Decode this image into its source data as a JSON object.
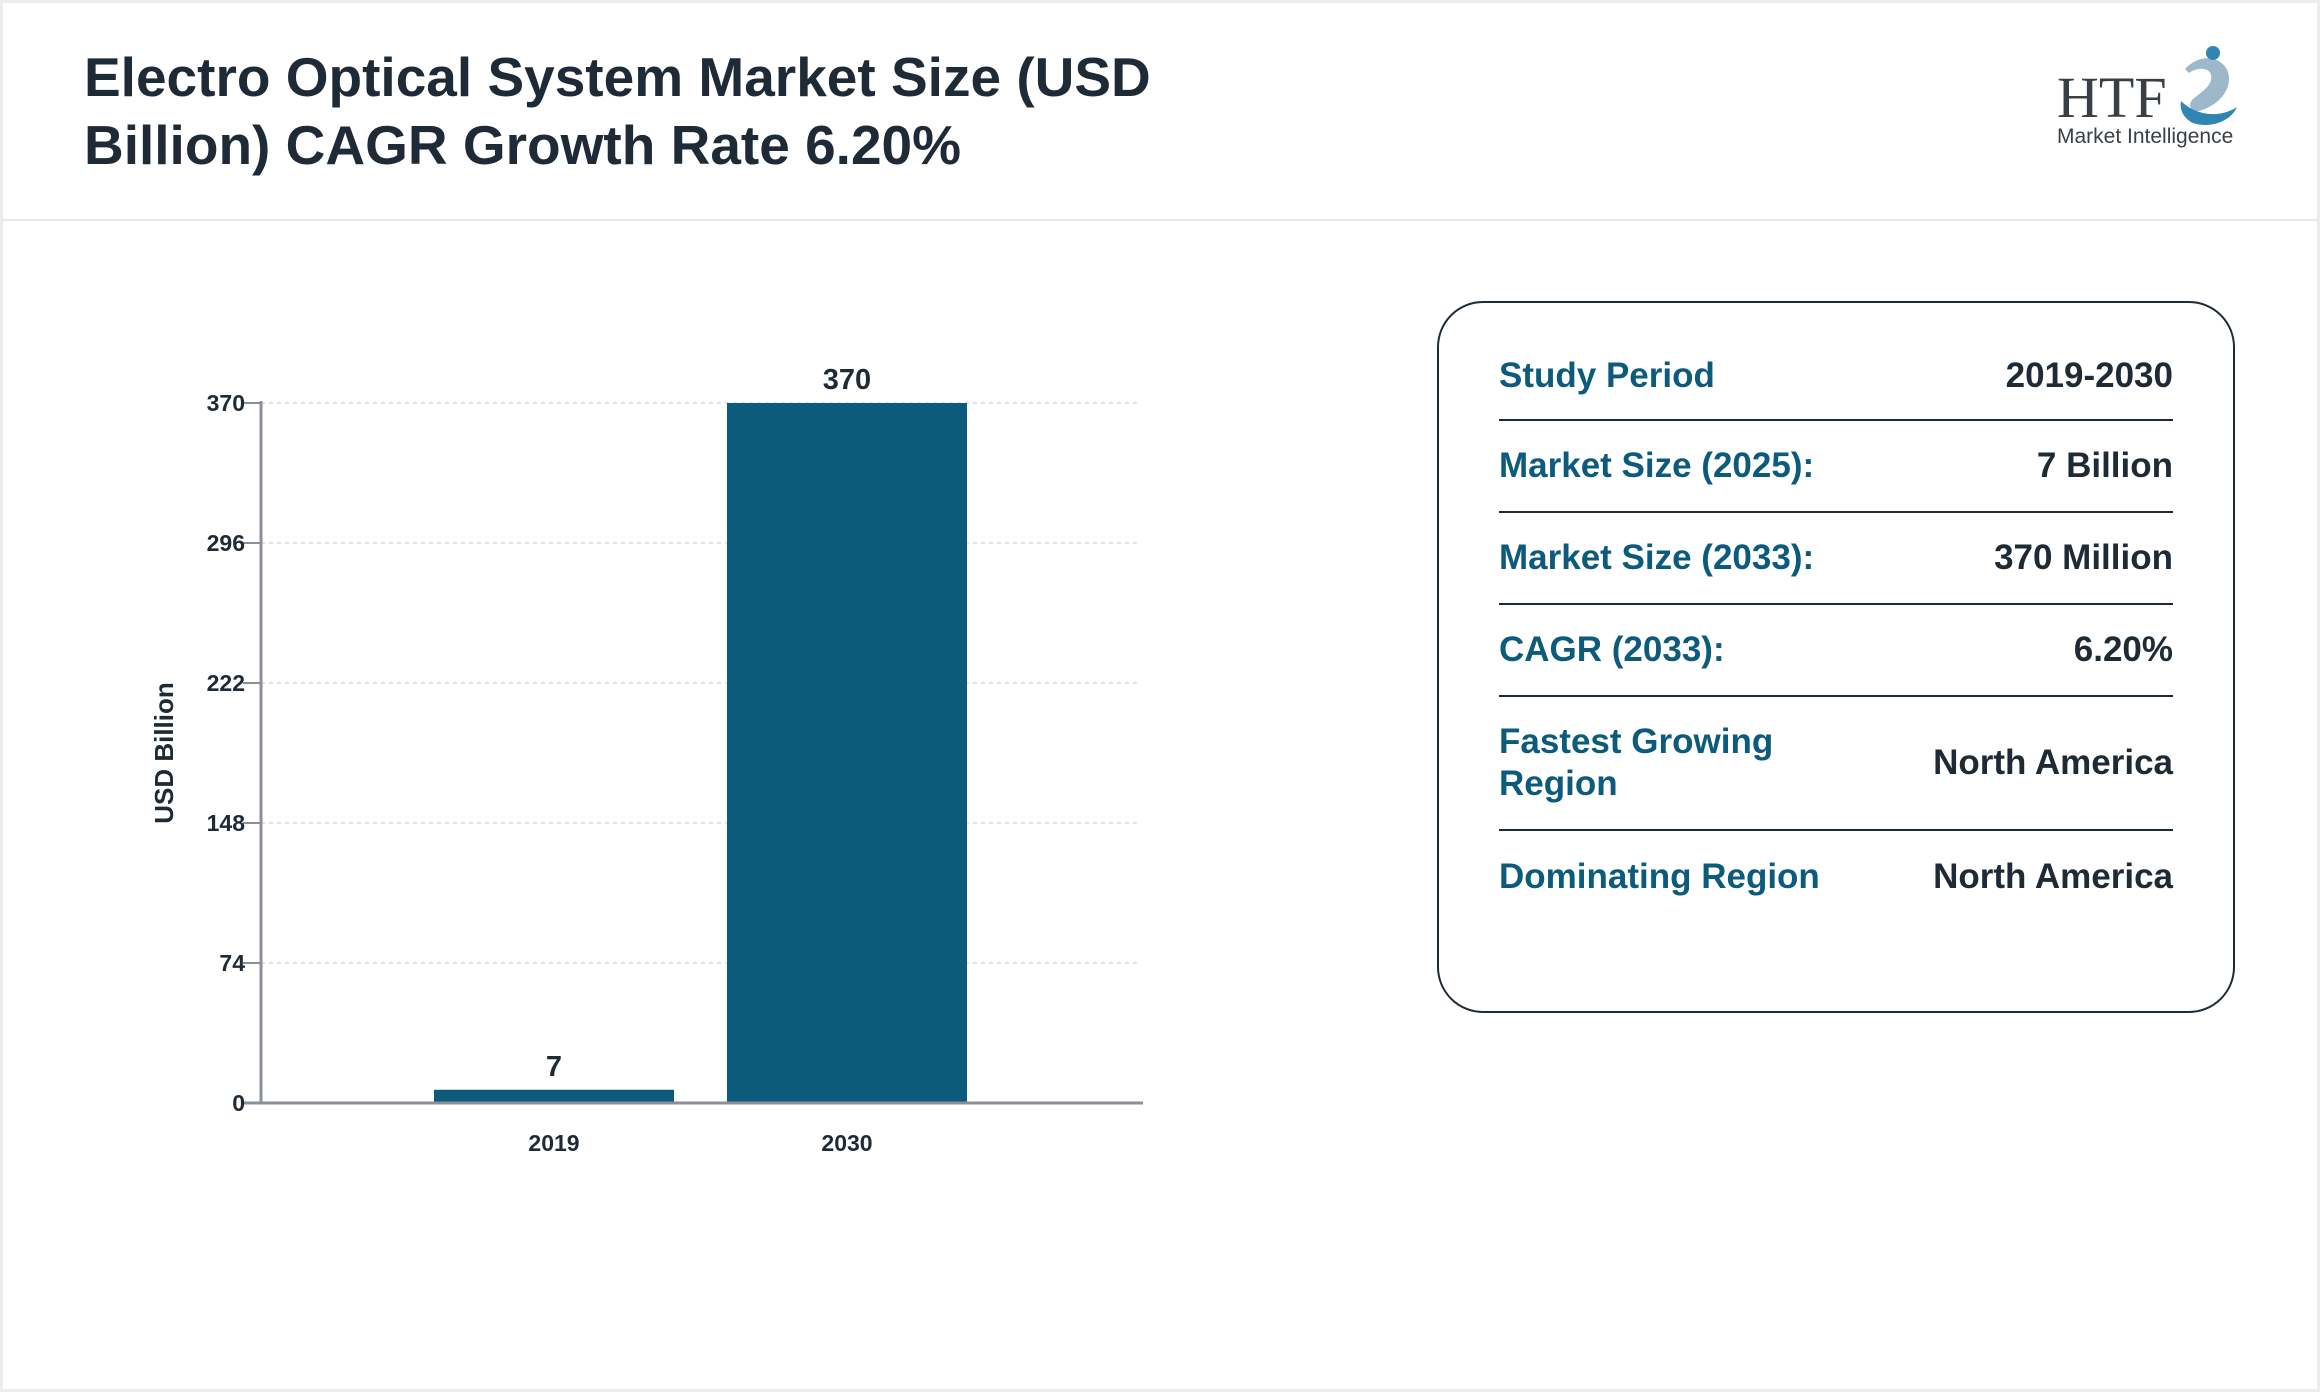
{
  "header": {
    "title": "Electro Optical System Market Size (USD Billion) CAGR Growth Rate 6.20%",
    "logo_text": "HTF",
    "logo_subtext": "Market Intelligence"
  },
  "colors": {
    "bar": "#0c5a7c",
    "label_accent": "#0c5a7c",
    "text_dark": "#1f2a37",
    "axis": "#8a8f98",
    "grid": "#d9dce0"
  },
  "chart_data": {
    "type": "bar",
    "categories": [
      "2019",
      "2030"
    ],
    "values": [
      7,
      370
    ],
    "data_labels": [
      "7",
      "370"
    ],
    "title": "",
    "xlabel": "",
    "ylabel": "USD Billion",
    "ylim": [
      0,
      370
    ],
    "yticks": [
      0,
      74,
      148,
      222,
      296,
      370
    ],
    "grid": true
  },
  "info_panel": {
    "rows": [
      {
        "label": "Study Period",
        "value": "2019-2030"
      },
      {
        "label": "Market Size (2025):",
        "value": "7 Billion"
      },
      {
        "label": "Market Size (2033):",
        "value": "370 Million"
      },
      {
        "label": "CAGR (2033):",
        "value": "6.20%"
      },
      {
        "label": "Fastest Growing Region",
        "value": "North America"
      },
      {
        "label": "Dominating Region",
        "value": "North America"
      }
    ]
  }
}
